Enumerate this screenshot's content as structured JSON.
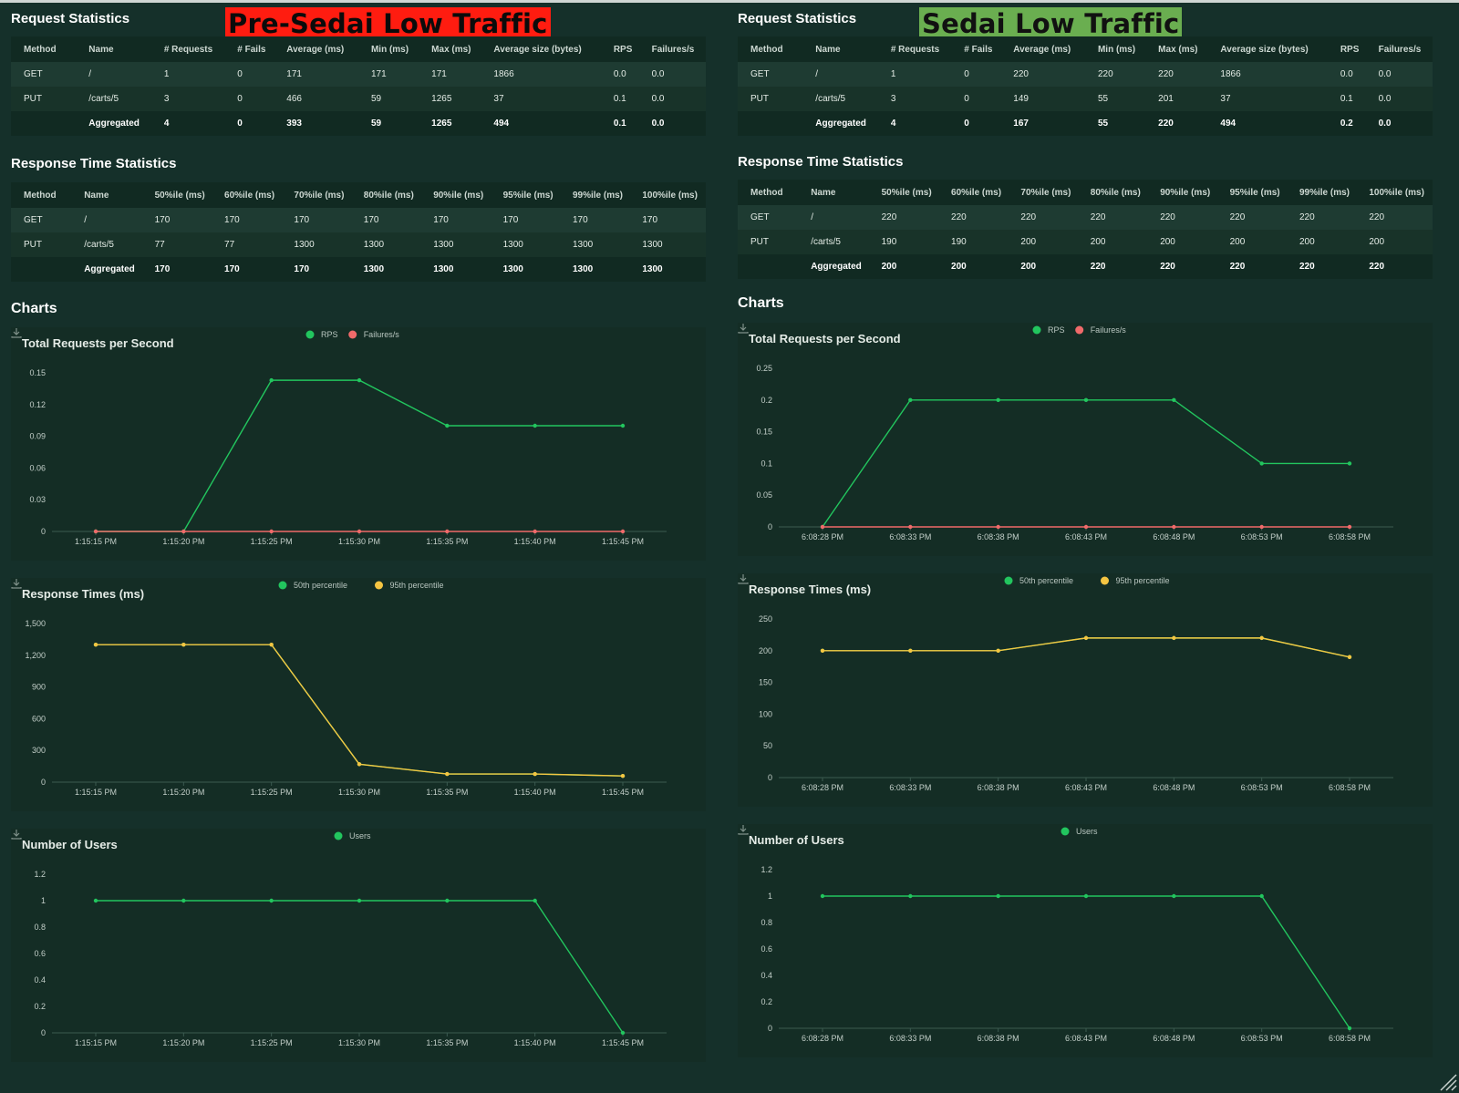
{
  "panels": [
    {
      "badge": "Pre-Sedai Low Traffic",
      "request_statistics": {
        "title": "Request Statistics",
        "headers": [
          "Method",
          "Name",
          "# Requests",
          "# Fails",
          "Average (ms)",
          "Min (ms)",
          "Max (ms)",
          "Average size (bytes)",
          "RPS",
          "Failures/s"
        ],
        "rows": [
          [
            "GET",
            "/",
            "1",
            "0",
            "171",
            "171",
            "171",
            "1866",
            "0.0",
            "0.0"
          ],
          [
            "PUT",
            "/carts/5",
            "3",
            "0",
            "466",
            "59",
            "1265",
            "37",
            "0.1",
            "0.0"
          ],
          [
            "",
            "Aggregated",
            "4",
            "0",
            "393",
            "59",
            "1265",
            "494",
            "0.1",
            "0.0"
          ]
        ]
      },
      "response_time_statistics": {
        "title": "Response Time Statistics",
        "headers": [
          "Method",
          "Name",
          "50%ile (ms)",
          "60%ile (ms)",
          "70%ile (ms)",
          "80%ile (ms)",
          "90%ile (ms)",
          "95%ile (ms)",
          "99%ile (ms)",
          "100%ile (ms)"
        ],
        "rows": [
          [
            "GET",
            "/",
            "170",
            "170",
            "170",
            "170",
            "170",
            "170",
            "170",
            "170"
          ],
          [
            "PUT",
            "/carts/5",
            "77",
            "77",
            "1300",
            "1300",
            "1300",
            "1300",
            "1300",
            "1300"
          ],
          [
            "",
            "Aggregated",
            "170",
            "170",
            "170",
            "1300",
            "1300",
            "1300",
            "1300",
            "1300"
          ]
        ]
      },
      "charts_title": "Charts",
      "charts": [
        {
          "title": "Total Requests per Second",
          "categories": [
            "1:15:15 PM",
            "1:15:20 PM",
            "1:15:25 PM",
            "1:15:30 PM",
            "1:15:35 PM",
            "1:15:40 PM",
            "1:15:45 PM"
          ],
          "yticks": [
            "0",
            "0.03",
            "0.06",
            "0.09",
            "0.12",
            "0.15"
          ],
          "ymax": 0.15,
          "series": [
            {
              "name": "RPS",
              "color": "#22c55e",
              "values": [
                0,
                0,
                0.143,
                0.143,
                0.1,
                0.1,
                0.1
              ]
            },
            {
              "name": "Failures/s",
              "color": "#f06a6a",
              "values": [
                0,
                0,
                0,
                0,
                0,
                0,
                0
              ]
            }
          ]
        },
        {
          "title": "Response Times (ms)",
          "categories": [
            "1:15:15 PM",
            "1:15:20 PM",
            "1:15:25 PM",
            "1:15:30 PM",
            "1:15:35 PM",
            "1:15:40 PM",
            "1:15:45 PM"
          ],
          "yticks": [
            "0",
            "300",
            "600",
            "900",
            "1,200",
            "1,500"
          ],
          "ymax": 1500,
          "series": [
            {
              "name": "50th percentile",
              "color": "#22c55e",
              "values": [
                1300,
                1300,
                1300,
                170,
                77,
                77,
                59
              ]
            },
            {
              "name": "95th percentile",
              "color": "#f5c542",
              "values": [
                1300,
                1300,
                1300,
                170,
                77,
                77,
                59
              ]
            }
          ]
        },
        {
          "title": "Number of Users",
          "categories": [
            "1:15:15 PM",
            "1:15:20 PM",
            "1:15:25 PM",
            "1:15:30 PM",
            "1:15:35 PM",
            "1:15:40 PM",
            "1:15:45 PM"
          ],
          "yticks": [
            "0",
            "0.2",
            "0.4",
            "0.6",
            "0.8",
            "1",
            "1.2"
          ],
          "ymax": 1.2,
          "series": [
            {
              "name": "Users",
              "color": "#22c55e",
              "values": [
                1,
                1,
                1,
                1,
                1,
                1,
                0
              ]
            }
          ]
        }
      ]
    },
    {
      "badge": "Sedai Low Traffic",
      "request_statistics": {
        "title": "Request Statistics",
        "headers": [
          "Method",
          "Name",
          "# Requests",
          "# Fails",
          "Average (ms)",
          "Min (ms)",
          "Max (ms)",
          "Average size (bytes)",
          "RPS",
          "Failures/s"
        ],
        "rows": [
          [
            "GET",
            "/",
            "1",
            "0",
            "220",
            "220",
            "220",
            "1866",
            "0.0",
            "0.0"
          ],
          [
            "PUT",
            "/carts/5",
            "3",
            "0",
            "149",
            "55",
            "201",
            "37",
            "0.1",
            "0.0"
          ],
          [
            "",
            "Aggregated",
            "4",
            "0",
            "167",
            "55",
            "220",
            "494",
            "0.2",
            "0.0"
          ]
        ]
      },
      "response_time_statistics": {
        "title": "Response Time Statistics",
        "headers": [
          "Method",
          "Name",
          "50%ile (ms)",
          "60%ile (ms)",
          "70%ile (ms)",
          "80%ile (ms)",
          "90%ile (ms)",
          "95%ile (ms)",
          "99%ile (ms)",
          "100%ile (ms)"
        ],
        "rows": [
          [
            "GET",
            "/",
            "220",
            "220",
            "220",
            "220",
            "220",
            "220",
            "220",
            "220"
          ],
          [
            "PUT",
            "/carts/5",
            "190",
            "190",
            "200",
            "200",
            "200",
            "200",
            "200",
            "200"
          ],
          [
            "",
            "Aggregated",
            "200",
            "200",
            "200",
            "220",
            "220",
            "220",
            "220",
            "220"
          ]
        ]
      },
      "charts_title": "Charts",
      "charts": [
        {
          "title": "Total Requests per Second",
          "categories": [
            "6:08:28 PM",
            "6:08:33 PM",
            "6:08:38 PM",
            "6:08:43 PM",
            "6:08:48 PM",
            "6:08:53 PM",
            "6:08:58 PM"
          ],
          "yticks": [
            "0",
            "0.05",
            "0.1",
            "0.15",
            "0.2",
            "0.25"
          ],
          "ymax": 0.25,
          "series": [
            {
              "name": "RPS",
              "color": "#22c55e",
              "values": [
                0,
                0.2,
                0.2,
                0.2,
                0.2,
                0.1,
                0.1
              ]
            },
            {
              "name": "Failures/s",
              "color": "#f06a6a",
              "values": [
                0,
                0,
                0,
                0,
                0,
                0,
                0
              ]
            }
          ]
        },
        {
          "title": "Response Times (ms)",
          "categories": [
            "6:08:28 PM",
            "6:08:33 PM",
            "6:08:38 PM",
            "6:08:43 PM",
            "6:08:48 PM",
            "6:08:53 PM",
            "6:08:58 PM"
          ],
          "yticks": [
            "0",
            "50",
            "100",
            "150",
            "200",
            "250"
          ],
          "ymax": 250,
          "series": [
            {
              "name": "50th percentile",
              "color": "#22c55e",
              "values": [
                200,
                200,
                200,
                220,
                220,
                220,
                190
              ]
            },
            {
              "name": "95th percentile",
              "color": "#f5c542",
              "values": [
                200,
                200,
                200,
                220,
                220,
                220,
                190
              ]
            }
          ]
        },
        {
          "title": "Number of Users",
          "categories": [
            "6:08:28 PM",
            "6:08:33 PM",
            "6:08:38 PM",
            "6:08:43 PM",
            "6:08:48 PM",
            "6:08:53 PM",
            "6:08:58 PM"
          ],
          "yticks": [
            "0",
            "0.2",
            "0.4",
            "0.6",
            "0.8",
            "1",
            "1.2"
          ],
          "ymax": 1.2,
          "series": [
            {
              "name": "Users",
              "color": "#22c55e",
              "values": [
                1,
                1,
                1,
                1,
                1,
                1,
                0
              ]
            }
          ]
        }
      ]
    }
  ]
}
